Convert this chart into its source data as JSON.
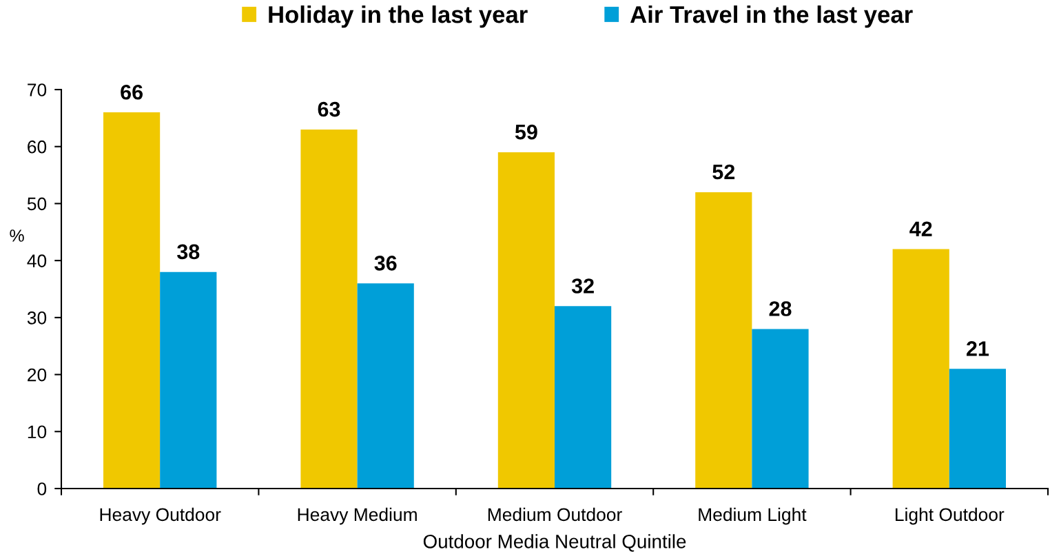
{
  "chart_data": {
    "type": "bar",
    "xlabel": "Outdoor Media Neutral Quintile",
    "ylabel": "%",
    "categories": [
      "Heavy Outdoor",
      "Heavy Medium",
      "Medium Outdoor",
      "Medium Light",
      "Light Outdoor"
    ],
    "series": [
      {
        "name": "Holiday in the last year",
        "color": "#f0c800",
        "values": [
          66,
          63,
          59,
          52,
          42
        ]
      },
      {
        "name": "Air Travel in the last year",
        "color": "#009fd8",
        "values": [
          38,
          36,
          32,
          28,
          21
        ]
      }
    ],
    "ylim": [
      0,
      70
    ],
    "yticks": [
      0,
      10,
      20,
      30,
      40,
      50,
      60,
      70
    ],
    "data_labels": true,
    "legend": "top",
    "grid": false
  }
}
